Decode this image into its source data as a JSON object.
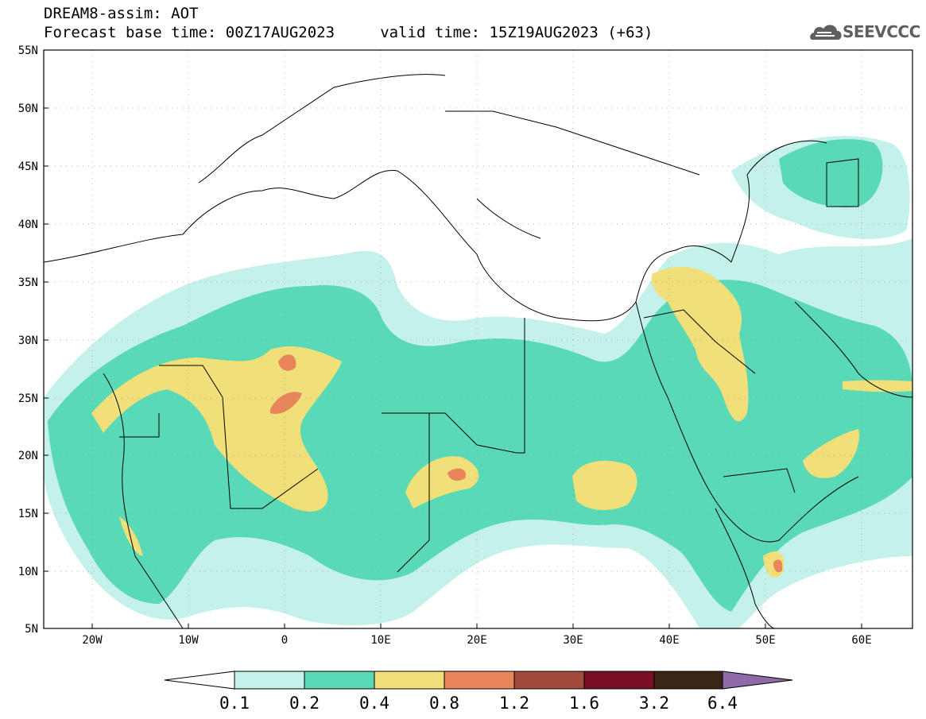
{
  "title": {
    "line1": "DREAM8-assim: AOT",
    "line2": "Forecast base time: 00Z17AUG2023     valid time: 15Z19AUG2023 (+63)"
  },
  "logo": {
    "text": "SEEVCCC",
    "icon": "cloud-icon"
  },
  "map": {
    "lon_range": [
      -25,
      65
    ],
    "lat_range": [
      5,
      55
    ],
    "lat_labels": [
      "55N",
      "50N",
      "45N",
      "40N",
      "35N",
      "30N",
      "25N",
      "20N",
      "15N",
      "10N",
      "5N"
    ],
    "lon_labels": [
      "20W",
      "10W",
      "0",
      "10E",
      "20E",
      "30E",
      "40E",
      "50E",
      "60E"
    ],
    "grid": "dotted"
  },
  "colorbar": {
    "labels": [
      "0.1",
      "0.2",
      "0.4",
      "0.8",
      "1.2",
      "1.6",
      "3.2",
      "6.4"
    ],
    "colors": [
      "#ffffff",
      "#c4f1ea",
      "#5ad9b7",
      "#f1e07a",
      "#e8855a",
      "#a34a3c",
      "#7a0f28",
      "#3b2616",
      "#8e6aa6"
    ]
  }
}
